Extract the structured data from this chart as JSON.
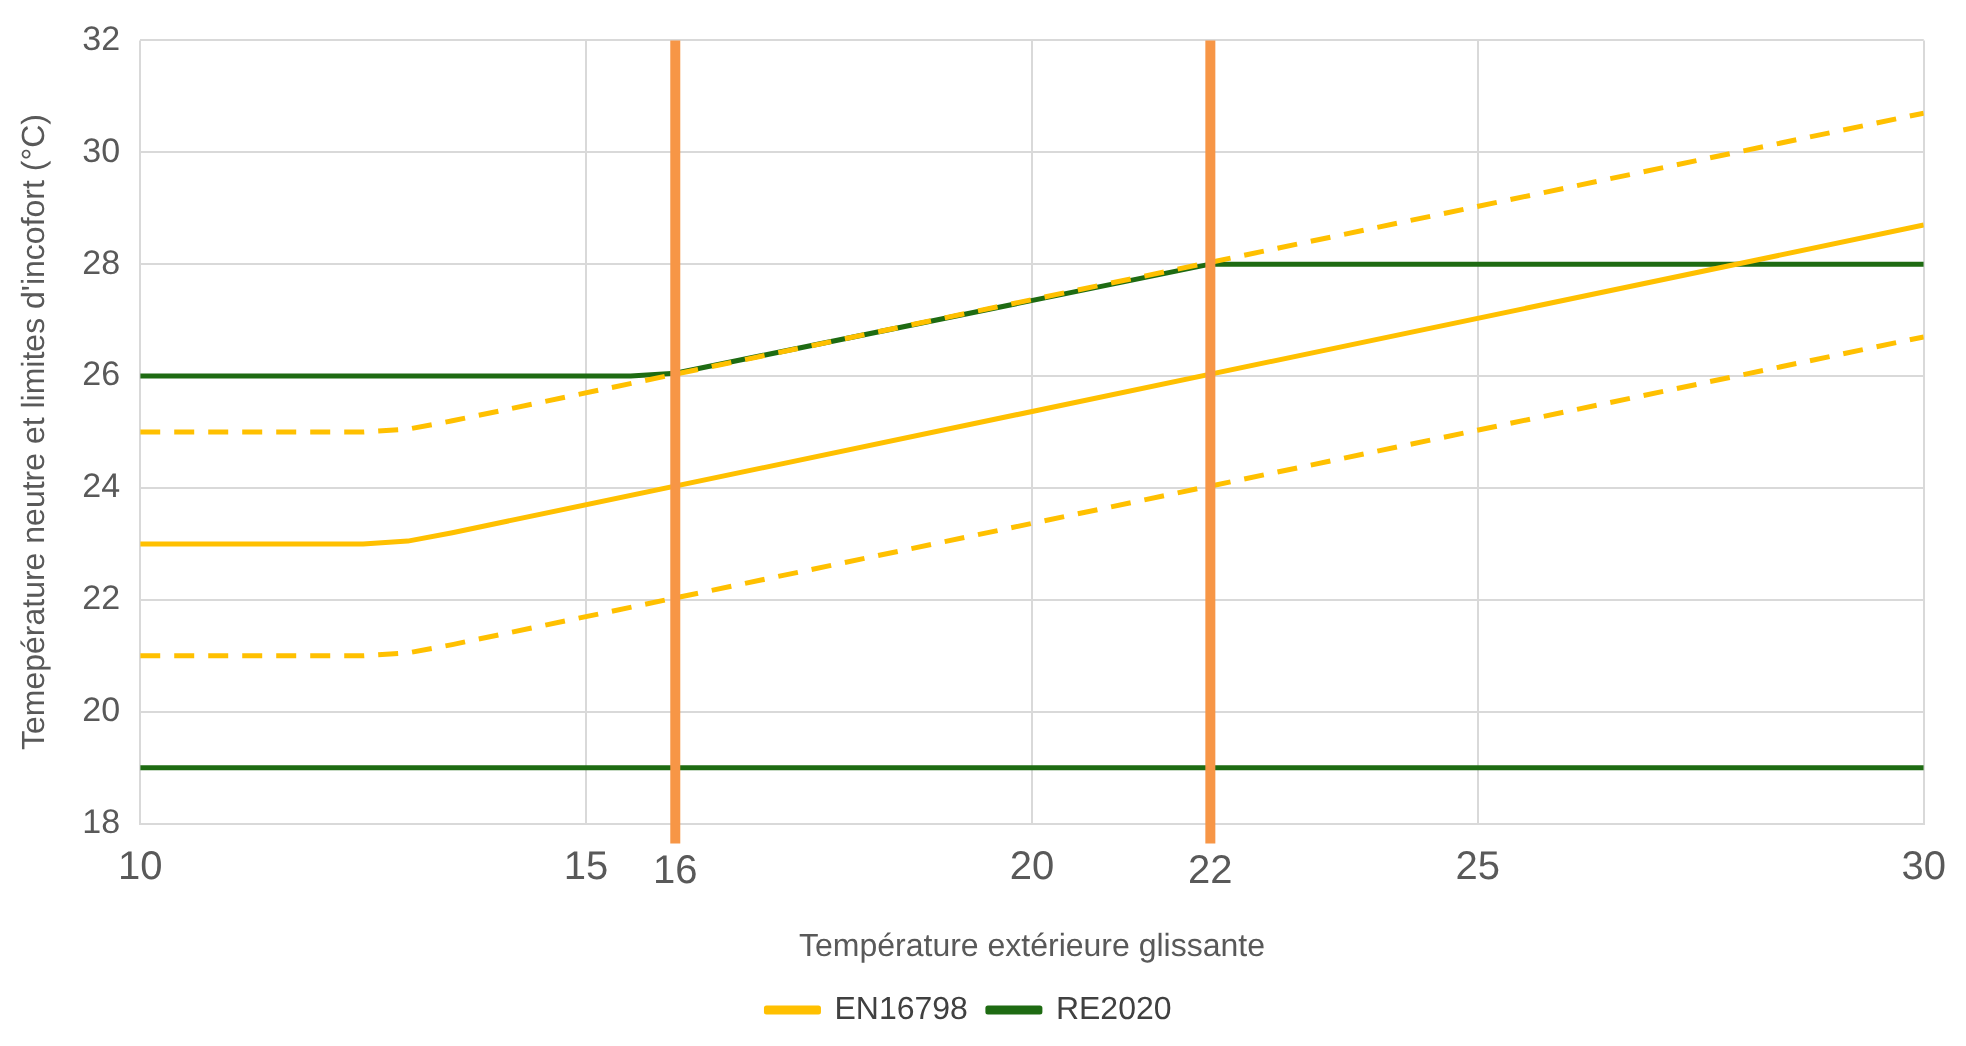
{
  "chart_data": {
    "type": "line",
    "xlabel": "Température extérieure glissante",
    "ylabel": "Temepérature neutre et limites d'incofort (°C)",
    "xlim": [
      10,
      30
    ],
    "xticks": [
      10,
      15,
      20,
      25,
      30
    ],
    "ylim": [
      18,
      32
    ],
    "yticks": [
      18,
      20,
      22,
      24,
      26,
      28,
      30,
      32
    ],
    "grid": true,
    "legend": "bottom",
    "marker": "none",
    "series": [
      {
        "name": "EN16798",
        "color": "#ffc000",
        "x": [
          10,
          12.5,
          13,
          13.5,
          30
        ],
        "values": [
          23,
          23,
          23.05,
          23.2,
          28.7
        ],
        "line_style": "solid"
      },
      {
        "color": "#ffc000",
        "x": [
          10,
          12.5,
          13,
          13.5,
          30
        ],
        "values": [
          25,
          25,
          25.05,
          25.2,
          30.7
        ],
        "line_style": "dashed"
      },
      {
        "color": "#ffc000",
        "x": [
          10,
          12.5,
          13,
          13.5,
          30
        ],
        "values": [
          21,
          21,
          21.05,
          21.2,
          26.7
        ],
        "line_style": "dashed"
      },
      {
        "name": "RE2020",
        "color": "#1e6b12",
        "x": [
          10,
          15.5,
          16,
          22,
          30
        ],
        "values": [
          26,
          26,
          26.05,
          28,
          28
        ],
        "line_style": "solid"
      },
      {
        "color": "#1e6b12",
        "x": [
          10,
          30
        ],
        "values": [
          19,
          19
        ],
        "line_style": "solid"
      }
    ],
    "ref_lines": [
      {
        "axis": "x",
        "value": 16,
        "label": "16",
        "color": "#f79646"
      },
      {
        "axis": "x",
        "value": 22,
        "label": "22",
        "color": "#f79646"
      }
    ]
  }
}
